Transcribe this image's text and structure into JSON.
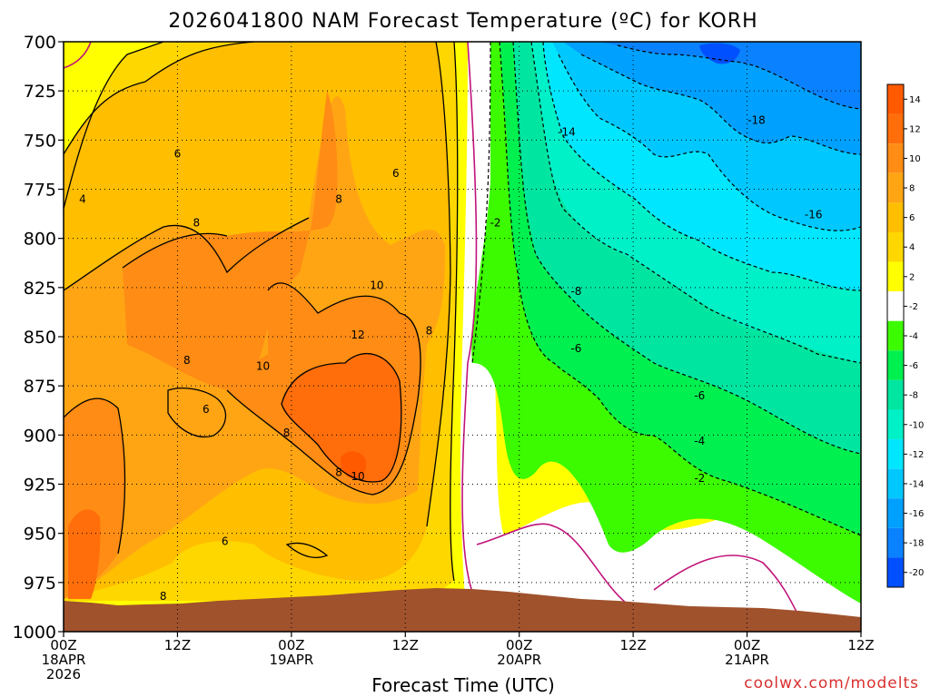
{
  "chart_data": {
    "type": "heatmap",
    "title": "2026041800 NAM Forecast Temperature (ºC) for KORH",
    "xlabel": "Forecast Time (UTC)",
    "ylabel": "",
    "credit": "coolwx.com/modelts",
    "y_axis": {
      "unit": "hPa",
      "ticks": [
        700,
        725,
        750,
        775,
        800,
        825,
        850,
        875,
        900,
        925,
        950,
        975,
        1000
      ],
      "range": [
        1000,
        700
      ]
    },
    "x_axis": {
      "unit": "hours from 2026-04-18 00Z",
      "range": [
        0,
        84
      ],
      "ticks": [
        {
          "hour": 0,
          "lines": [
            "00Z",
            "18APR",
            "2026"
          ]
        },
        {
          "hour": 12,
          "lines": [
            "12Z"
          ]
        },
        {
          "hour": 24,
          "lines": [
            "00Z",
            "19APR"
          ]
        },
        {
          "hour": 36,
          "lines": [
            "12Z"
          ]
        },
        {
          "hour": 48,
          "lines": [
            "00Z",
            "20APR"
          ]
        },
        {
          "hour": 60,
          "lines": [
            "12Z"
          ]
        },
        {
          "hour": 72,
          "lines": [
            "00Z",
            "21APR"
          ]
        },
        {
          "hour": 84,
          "lines": [
            "12Z"
          ]
        }
      ]
    },
    "grid": true,
    "colorbar": {
      "position": "right",
      "bins": [
        {
          "label": "14",
          "color": "#ff5a00"
        },
        {
          "label": "12",
          "color": "#ff6e0a"
        },
        {
          "label": "10",
          "color": "#ff8c14"
        },
        {
          "label": "8",
          "color": "#ffa514"
        },
        {
          "label": "6",
          "color": "#ffbe00"
        },
        {
          "label": "4",
          "color": "#ffd700"
        },
        {
          "label": "2",
          "color": "#ffff00"
        },
        {
          "label": "-2",
          "color": "#ffffff"
        },
        {
          "label": "-4",
          "color": "#3cfa00"
        },
        {
          "label": "-6",
          "color": "#00f050"
        },
        {
          "label": "-8",
          "color": "#00e6a0"
        },
        {
          "label": "-10",
          "color": "#00f0c8"
        },
        {
          "label": "-12",
          "color": "#00e6ff"
        },
        {
          "label": "-14",
          "color": "#00c8ff"
        },
        {
          "label": "-16",
          "color": "#00a0ff"
        },
        {
          "label": "-18",
          "color": "#0a82ff"
        },
        {
          "label": "-20",
          "color": "#0050ff"
        }
      ]
    },
    "contour_labels": [
      {
        "text": "4",
        "hour": 2,
        "p": 780
      },
      {
        "text": "6",
        "hour": 12,
        "p": 757
      },
      {
        "text": "6",
        "hour": 35,
        "p": 767
      },
      {
        "text": "8",
        "hour": 14,
        "p": 792
      },
      {
        "text": "8",
        "hour": 29,
        "p": 780
      },
      {
        "text": "8",
        "hour": 13,
        "p": 862
      },
      {
        "text": "8",
        "hour": 38.5,
        "p": 847
      },
      {
        "text": "8",
        "hour": 23.5,
        "p": 899
      },
      {
        "text": "8",
        "hour": 29,
        "p": 919
      },
      {
        "text": "8",
        "hour": 10.5,
        "p": 982
      },
      {
        "text": "10",
        "hour": 33,
        "p": 824
      },
      {
        "text": "10",
        "hour": 21,
        "p": 865
      },
      {
        "text": "10",
        "hour": 31,
        "p": 921
      },
      {
        "text": "12",
        "hour": 31,
        "p": 849
      },
      {
        "text": "6",
        "hour": 15,
        "p": 887
      },
      {
        "text": "6",
        "hour": 17,
        "p": 954
      },
      {
        "text": "-2",
        "hour": 45.5,
        "p": 792
      },
      {
        "text": "-14",
        "hour": 53,
        "p": 746
      },
      {
        "text": "-8",
        "hour": 54,
        "p": 827
      },
      {
        "text": "-6",
        "hour": 54,
        "p": 856
      },
      {
        "text": "-6",
        "hour": 67,
        "p": 880
      },
      {
        "text": "-4",
        "hour": 67,
        "p": 903
      },
      {
        "text": "-2",
        "hour": 67,
        "p": 922
      },
      {
        "text": "-18",
        "hour": 73,
        "p": 740
      },
      {
        "text": "-16",
        "hour": 79,
        "p": 788
      }
    ]
  }
}
